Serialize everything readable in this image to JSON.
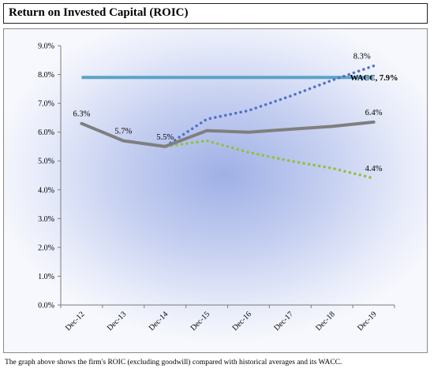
{
  "header": {
    "title": "Return on Invested Capital (ROIC)"
  },
  "caption": "The graph above shows the firm's ROIC (excluding goodwill) compared with historical averages and its WACC.",
  "chart_data": {
    "type": "line",
    "title": "",
    "xlabel": "",
    "ylabel": "",
    "categories": [
      "Dec-12",
      "Dec-13",
      "Dec-14",
      "Dec-15",
      "Dec-16",
      "Dec-17",
      "Dec-18",
      "Dec-19"
    ],
    "ylim": [
      0,
      9
    ],
    "ytick_labels": [
      "0.0%",
      "1.0%",
      "2.0%",
      "3.0%",
      "4.0%",
      "5.0%",
      "6.0%",
      "7.0%",
      "8.0%",
      "9.0%"
    ],
    "grid": false,
    "series": [
      {
        "key": "roic",
        "style": "solid",
        "color": "#7f7f7f",
        "values": [
          6.3,
          5.7,
          5.5,
          6.05,
          6.0,
          6.1,
          6.2,
          6.35
        ]
      },
      {
        "key": "high",
        "style": "dotted",
        "color": "#4f71c8",
        "values": [
          6.3,
          5.7,
          5.5,
          6.45,
          6.75,
          7.25,
          7.8,
          8.3
        ]
      },
      {
        "key": "low",
        "style": "dotted",
        "color": "#92c13d",
        "values": [
          6.3,
          5.7,
          5.5,
          5.7,
          5.3,
          5.0,
          4.75,
          4.4
        ]
      },
      {
        "key": "wacc",
        "style": "solid",
        "color": "#5ba3c8",
        "values": [
          7.9,
          7.9,
          7.9,
          7.9,
          7.9,
          7.9,
          7.9,
          7.9
        ]
      }
    ],
    "annotations": [
      {
        "text": "6.3%",
        "x": "Dec-12",
        "y": 6.3,
        "anchor": "above"
      },
      {
        "text": "5.7%",
        "x": "Dec-13",
        "y": 5.7,
        "anchor": "above"
      },
      {
        "text": "5.5%",
        "x": "Dec-14",
        "y": 5.5,
        "anchor": "above"
      },
      {
        "text": "8.3%",
        "x": "Dec-19",
        "y": 8.3,
        "anchor": "above-left"
      },
      {
        "text": "WACC, 7.9%",
        "x": "Dec-19",
        "y": 7.9,
        "anchor": "left",
        "bold": true
      },
      {
        "text": "6.4%",
        "x": "Dec-19",
        "y": 6.35,
        "anchor": "above"
      },
      {
        "text": "4.4%",
        "x": "Dec-19",
        "y": 4.4,
        "anchor": "above"
      }
    ]
  }
}
